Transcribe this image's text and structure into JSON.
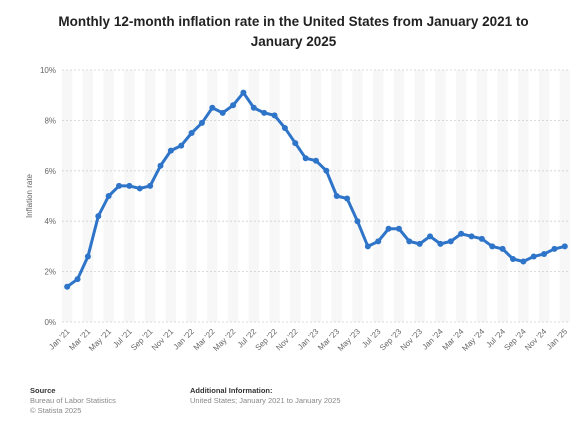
{
  "chart_data": {
    "type": "line",
    "title": "Monthly 12-month inflation rate in the United States from January 2021 to January 2025",
    "y_label": "Inflation rate",
    "categories": [
      "Jan '21",
      null,
      "Mar '21",
      null,
      "May '21",
      null,
      "Jul '21",
      null,
      "Sep '21",
      null,
      "Nov '21",
      null,
      "Jan '22",
      null,
      "Mar '22",
      null,
      "May '22",
      null,
      "Jul '22",
      null,
      "Sep '22",
      null,
      "Nov '22",
      null,
      "Jan '23",
      null,
      "Mar '23",
      null,
      "May '23",
      null,
      "Jul '23",
      null,
      "Sep '23",
      null,
      "Nov '23",
      null,
      "Jan '24",
      null,
      "Mar '24",
      null,
      "May '24",
      null,
      "Jul '24",
      null,
      "Sep '24",
      null,
      "Nov '24",
      null,
      "Jan '25"
    ],
    "series": [
      {
        "name": "Inflation rate",
        "color": "#2e74c8",
        "values": [
          1.4,
          1.7,
          2.6,
          4.2,
          5.0,
          5.4,
          5.4,
          5.3,
          5.4,
          6.2,
          6.8,
          7.0,
          7.5,
          7.9,
          8.5,
          8.3,
          8.6,
          9.1,
          8.5,
          8.3,
          8.2,
          7.7,
          7.1,
          6.5,
          6.4,
          6.0,
          5.0,
          4.9,
          4.0,
          3.0,
          3.2,
          3.7,
          3.7,
          3.2,
          3.1,
          3.4,
          3.1,
          3.2,
          3.5,
          3.4,
          3.3,
          3.0,
          2.9,
          2.5,
          2.4,
          2.6,
          2.7,
          2.9,
          3.0
        ]
      }
    ],
    "ylim": [
      0,
      10
    ],
    "yticks": [
      {
        "value": 0,
        "label": "0%"
      },
      {
        "value": 2,
        "label": "2%"
      },
      {
        "value": 4,
        "label": "4%"
      },
      {
        "value": 6,
        "label": "6%"
      },
      {
        "value": 8,
        "label": "8%"
      },
      {
        "value": 10,
        "label": "10%"
      }
    ],
    "grid": true
  },
  "footer": {
    "source_heading": "Source",
    "source": "Bureau of Labor Statistics",
    "copyright": "© Statista 2025",
    "info_heading": "Additional Information:",
    "info": "United States; January 2021 to January 2025"
  }
}
